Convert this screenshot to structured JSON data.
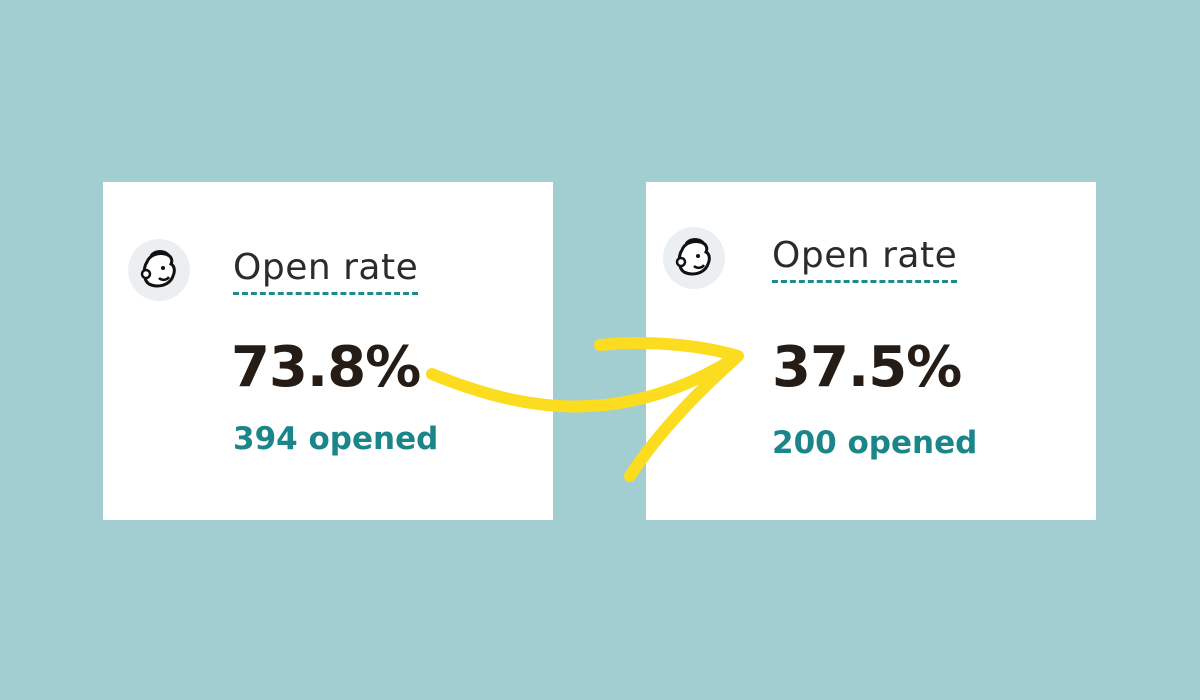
{
  "cards": [
    {
      "label": "Open rate",
      "value": "73.8%",
      "detail": "394 opened"
    },
    {
      "label": "Open rate",
      "value": "37.5%",
      "detail": "200 opened"
    }
  ]
}
